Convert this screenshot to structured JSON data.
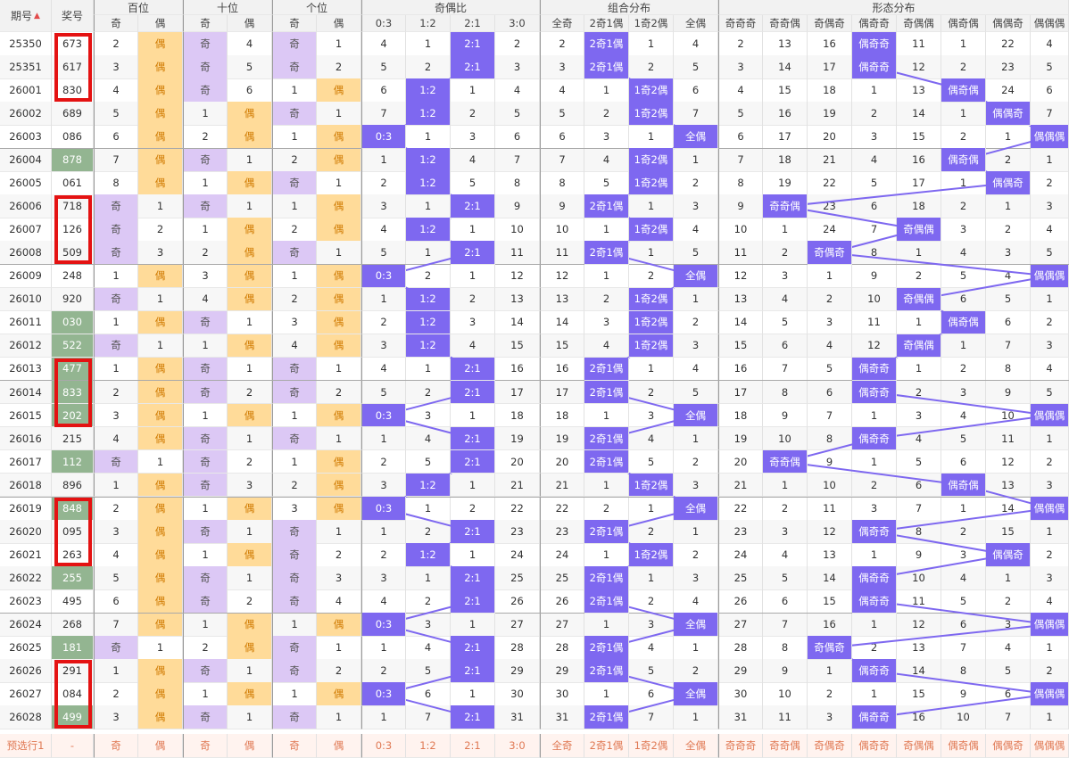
{
  "header": {
    "issue": "期号",
    "draw": "奖号",
    "sort_arrow": "▲",
    "groups": {
      "hundreds": "百位",
      "tens": "十位",
      "units": "个位",
      "ratio": "奇偶比",
      "combo": "组合分布",
      "shape": "形态分布"
    },
    "sub": {
      "odd": "奇",
      "even": "偶",
      "ratio": [
        "0:3",
        "1:2",
        "2:1",
        "3:0"
      ],
      "combo": [
        "全奇",
        "2奇1偶",
        "1奇2偶",
        "全偶"
      ],
      "shape": [
        "奇奇奇",
        "奇奇偶",
        "奇偶奇",
        "偶奇奇",
        "奇偶偶",
        "偶奇偶",
        "偶偶奇",
        "偶偶偶"
      ]
    }
  },
  "colors": {
    "odd_bg": "#dcc8f5",
    "even_bg": "#ffdb99",
    "even_text": "#d07a00",
    "hot_bg": "#7e68f0",
    "green_bg": "#93b591",
    "frame": "#e41212",
    "line": "#7e68f0"
  },
  "rows": [
    {
      "issue": "25350",
      "num": "673",
      "g": 0,
      "h": [
        2,
        "偶"
      ],
      "t": [
        "奇",
        4
      ],
      "u": [
        "奇",
        1
      ],
      "r": [
        4,
        1,
        "2:1",
        2
      ],
      "c": [
        2,
        "2奇1偶",
        1,
        4
      ],
      "s": [
        2,
        13,
        16,
        "偶奇奇",
        11,
        1,
        22,
        4
      ]
    },
    {
      "issue": "25351",
      "num": "617",
      "g": 0,
      "h": [
        3,
        "偶"
      ],
      "t": [
        "奇",
        5
      ],
      "u": [
        "奇",
        2
      ],
      "r": [
        5,
        2,
        "2:1",
        3
      ],
      "c": [
        3,
        "2奇1偶",
        2,
        5
      ],
      "s": [
        3,
        14,
        17,
        "偶奇奇",
        12,
        2,
        23,
        5
      ]
    },
    {
      "issue": "26001",
      "num": "830",
      "g": 0,
      "h": [
        4,
        "偶"
      ],
      "t": [
        "奇",
        6
      ],
      "u": [
        1,
        "偶"
      ],
      "r": [
        6,
        "1:2",
        1,
        4
      ],
      "c": [
        4,
        1,
        "1奇2偶",
        6
      ],
      "s": [
        4,
        15,
        18,
        1,
        13,
        "偶奇偶",
        24,
        6
      ]
    },
    {
      "issue": "26002",
      "num": "689",
      "g": 0,
      "h": [
        5,
        "偶"
      ],
      "t": [
        1,
        "偶"
      ],
      "u": [
        "奇",
        1
      ],
      "r": [
        7,
        "1:2",
        2,
        5
      ],
      "c": [
        5,
        2,
        "1奇2偶",
        7
      ],
      "s": [
        5,
        16,
        19,
        2,
        14,
        1,
        "偶偶奇",
        7
      ]
    },
    {
      "issue": "26003",
      "num": "086",
      "g": 0,
      "h": [
        6,
        "偶"
      ],
      "t": [
        2,
        "偶"
      ],
      "u": [
        1,
        "偶"
      ],
      "r": [
        "0:3",
        1,
        3,
        6
      ],
      "c": [
        6,
        3,
        1,
        "全偶"
      ],
      "s": [
        6,
        17,
        20,
        3,
        15,
        2,
        1,
        "偶偶偶"
      ]
    },
    {
      "issue": "26004",
      "num": "878",
      "g": 1,
      "h": [
        7,
        "偶"
      ],
      "t": [
        "奇",
        1
      ],
      "u": [
        2,
        "偶"
      ],
      "r": [
        1,
        "1:2",
        4,
        7
      ],
      "c": [
        7,
        4,
        "1奇2偶",
        1
      ],
      "s": [
        7,
        18,
        21,
        4,
        16,
        "偶奇偶",
        2,
        1
      ]
    },
    {
      "issue": "26005",
      "num": "061",
      "g": 0,
      "h": [
        8,
        "偶"
      ],
      "t": [
        1,
        "偶"
      ],
      "u": [
        "奇",
        1
      ],
      "r": [
        2,
        "1:2",
        5,
        8
      ],
      "c": [
        8,
        5,
        "1奇2偶",
        2
      ],
      "s": [
        8,
        19,
        22,
        5,
        17,
        1,
        "偶偶奇",
        2
      ]
    },
    {
      "issue": "26006",
      "num": "718",
      "g": 0,
      "h": [
        "奇",
        1
      ],
      "t": [
        "奇",
        1
      ],
      "u": [
        1,
        "偶"
      ],
      "r": [
        3,
        1,
        "2:1",
        9
      ],
      "c": [
        9,
        "2奇1偶",
        1,
        3
      ],
      "s": [
        9,
        "奇奇偶",
        23,
        6,
        18,
        2,
        1,
        3
      ]
    },
    {
      "issue": "26007",
      "num": "126",
      "g": 0,
      "h": [
        "奇",
        2
      ],
      "t": [
        1,
        "偶"
      ],
      "u": [
        2,
        "偶"
      ],
      "r": [
        4,
        "1:2",
        1,
        10
      ],
      "c": [
        10,
        1,
        "1奇2偶",
        4
      ],
      "s": [
        10,
        1,
        24,
        7,
        "奇偶偶",
        3,
        2,
        4
      ]
    },
    {
      "issue": "26008",
      "num": "509",
      "g": 0,
      "h": [
        "奇",
        3
      ],
      "t": [
        2,
        "偶"
      ],
      "u": [
        "奇",
        1
      ],
      "r": [
        5,
        1,
        "2:1",
        11
      ],
      "c": [
        11,
        "2奇1偶",
        1,
        5
      ],
      "s": [
        11,
        2,
        "奇偶奇",
        8,
        1,
        4,
        3,
        5
      ]
    },
    {
      "issue": "26009",
      "num": "248",
      "g": 0,
      "h": [
        1,
        "偶"
      ],
      "t": [
        3,
        "偶"
      ],
      "u": [
        1,
        "偶"
      ],
      "r": [
        "0:3",
        2,
        1,
        12
      ],
      "c": [
        12,
        1,
        2,
        "全偶"
      ],
      "s": [
        12,
        3,
        1,
        9,
        2,
        5,
        4,
        "偶偶偶"
      ]
    },
    {
      "issue": "26010",
      "num": "920",
      "g": 0,
      "h": [
        "奇",
        1
      ],
      "t": [
        4,
        "偶"
      ],
      "u": [
        2,
        "偶"
      ],
      "r": [
        1,
        "1:2",
        2,
        13
      ],
      "c": [
        13,
        2,
        "1奇2偶",
        1
      ],
      "s": [
        13,
        4,
        2,
        10,
        "奇偶偶",
        6,
        5,
        1
      ]
    },
    {
      "issue": "26011",
      "num": "030",
      "g": 1,
      "h": [
        1,
        "偶"
      ],
      "t": [
        "奇",
        1
      ],
      "u": [
        3,
        "偶"
      ],
      "r": [
        2,
        "1:2",
        3,
        14
      ],
      "c": [
        14,
        3,
        "1奇2偶",
        2
      ],
      "s": [
        14,
        5,
        3,
        11,
        1,
        "偶奇偶",
        6,
        2
      ]
    },
    {
      "issue": "26012",
      "num": "522",
      "g": 1,
      "h": [
        "奇",
        1
      ],
      "t": [
        1,
        "偶"
      ],
      "u": [
        4,
        "偶"
      ],
      "r": [
        3,
        "1:2",
        4,
        15
      ],
      "c": [
        15,
        4,
        "1奇2偶",
        3
      ],
      "s": [
        15,
        6,
        4,
        12,
        "奇偶偶",
        1,
        7,
        3
      ]
    },
    {
      "issue": "26013",
      "num": "477",
      "g": 1,
      "h": [
        1,
        "偶"
      ],
      "t": [
        "奇",
        1
      ],
      "u": [
        "奇",
        1
      ],
      "r": [
        4,
        1,
        "2:1",
        16
      ],
      "c": [
        16,
        "2奇1偶",
        1,
        4
      ],
      "s": [
        16,
        7,
        5,
        "偶奇奇",
        1,
        2,
        8,
        4
      ]
    },
    {
      "issue": "26014",
      "num": "833",
      "g": 1,
      "h": [
        2,
        "偶"
      ],
      "t": [
        "奇",
        2
      ],
      "u": [
        "奇",
        2
      ],
      "r": [
        5,
        2,
        "2:1",
        17
      ],
      "c": [
        17,
        "2奇1偶",
        2,
        5
      ],
      "s": [
        17,
        8,
        6,
        "偶奇奇",
        2,
        3,
        9,
        5
      ]
    },
    {
      "issue": "26015",
      "num": "202",
      "g": 1,
      "h": [
        3,
        "偶"
      ],
      "t": [
        1,
        "偶"
      ],
      "u": [
        1,
        "偶"
      ],
      "r": [
        "0:3",
        3,
        1,
        18
      ],
      "c": [
        18,
        1,
        3,
        "全偶"
      ],
      "s": [
        18,
        9,
        7,
        1,
        3,
        4,
        10,
        "偶偶偶"
      ]
    },
    {
      "issue": "26016",
      "num": "215",
      "g": 0,
      "h": [
        4,
        "偶"
      ],
      "t": [
        "奇",
        1
      ],
      "u": [
        "奇",
        1
      ],
      "r": [
        1,
        4,
        "2:1",
        19
      ],
      "c": [
        19,
        "2奇1偶",
        4,
        1
      ],
      "s": [
        19,
        10,
        8,
        "偶奇奇",
        4,
        5,
        11,
        1
      ]
    },
    {
      "issue": "26017",
      "num": "112",
      "g": 1,
      "h": [
        "奇",
        1
      ],
      "t": [
        "奇",
        2
      ],
      "u": [
        1,
        "偶"
      ],
      "r": [
        2,
        5,
        "2:1",
        20
      ],
      "c": [
        20,
        "2奇1偶",
        5,
        2
      ],
      "s": [
        20,
        "奇奇偶",
        9,
        1,
        5,
        6,
        12,
        2
      ]
    },
    {
      "issue": "26018",
      "num": "896",
      "g": 0,
      "h": [
        1,
        "偶"
      ],
      "t": [
        "奇",
        3
      ],
      "u": [
        2,
        "偶"
      ],
      "r": [
        3,
        "1:2",
        1,
        21
      ],
      "c": [
        21,
        1,
        "1奇2偶",
        3
      ],
      "s": [
        21,
        1,
        10,
        2,
        6,
        "偶奇偶",
        13,
        3
      ]
    },
    {
      "issue": "26019",
      "num": "848",
      "g": 1,
      "h": [
        2,
        "偶"
      ],
      "t": [
        1,
        "偶"
      ],
      "u": [
        3,
        "偶"
      ],
      "r": [
        "0:3",
        1,
        2,
        22
      ],
      "c": [
        22,
        2,
        1,
        "全偶"
      ],
      "s": [
        22,
        2,
        11,
        3,
        7,
        1,
        14,
        "偶偶偶"
      ]
    },
    {
      "issue": "26020",
      "num": "095",
      "g": 0,
      "h": [
        3,
        "偶"
      ],
      "t": [
        "奇",
        1
      ],
      "u": [
        "奇",
        1
      ],
      "r": [
        1,
        2,
        "2:1",
        23
      ],
      "c": [
        23,
        "2奇1偶",
        2,
        1
      ],
      "s": [
        23,
        3,
        12,
        "偶奇奇",
        8,
        2,
        15,
        1
      ]
    },
    {
      "issue": "26021",
      "num": "263",
      "g": 0,
      "h": [
        4,
        "偶"
      ],
      "t": [
        1,
        "偶"
      ],
      "u": [
        "奇",
        2
      ],
      "r": [
        2,
        "1:2",
        1,
        24
      ],
      "c": [
        24,
        1,
        "1奇2偶",
        2
      ],
      "s": [
        24,
        4,
        13,
        1,
        9,
        3,
        "偶偶奇",
        2
      ]
    },
    {
      "issue": "26022",
      "num": "255",
      "g": 1,
      "h": [
        5,
        "偶"
      ],
      "t": [
        "奇",
        1
      ],
      "u": [
        "奇",
        3
      ],
      "r": [
        3,
        1,
        "2:1",
        25
      ],
      "c": [
        25,
        "2奇1偶",
        1,
        3
      ],
      "s": [
        25,
        5,
        14,
        "偶奇奇",
        10,
        4,
        1,
        3
      ]
    },
    {
      "issue": "26023",
      "num": "495",
      "g": 0,
      "h": [
        6,
        "偶"
      ],
      "t": [
        "奇",
        2
      ],
      "u": [
        "奇",
        4
      ],
      "r": [
        4,
        2,
        "2:1",
        26
      ],
      "c": [
        26,
        "2奇1偶",
        2,
        4
      ],
      "s": [
        26,
        6,
        15,
        "偶奇奇",
        11,
        5,
        2,
        4
      ]
    },
    {
      "issue": "26024",
      "num": "268",
      "g": 0,
      "h": [
        7,
        "偶"
      ],
      "t": [
        1,
        "偶"
      ],
      "u": [
        1,
        "偶"
      ],
      "r": [
        "0:3",
        3,
        1,
        27
      ],
      "c": [
        27,
        1,
        3,
        "全偶"
      ],
      "s": [
        27,
        7,
        16,
        1,
        12,
        6,
        3,
        "偶偶偶"
      ]
    },
    {
      "issue": "26025",
      "num": "181",
      "g": 1,
      "h": [
        "奇",
        1
      ],
      "t": [
        2,
        "偶"
      ],
      "u": [
        "奇",
        1
      ],
      "r": [
        1,
        4,
        "2:1",
        28
      ],
      "c": [
        28,
        "2奇1偶",
        4,
        1
      ],
      "s": [
        28,
        8,
        "奇偶奇",
        2,
        13,
        7,
        4,
        1
      ]
    },
    {
      "issue": "26026",
      "num": "291",
      "g": 0,
      "h": [
        1,
        "偶"
      ],
      "t": [
        "奇",
        1
      ],
      "u": [
        "奇",
        2
      ],
      "r": [
        2,
        5,
        "2:1",
        29
      ],
      "c": [
        29,
        "2奇1偶",
        5,
        2
      ],
      "s": [
        29,
        9,
        1,
        "偶奇奇",
        14,
        8,
        5,
        2
      ]
    },
    {
      "issue": "26027",
      "num": "084",
      "g": 0,
      "h": [
        2,
        "偶"
      ],
      "t": [
        1,
        "偶"
      ],
      "u": [
        1,
        "偶"
      ],
      "r": [
        "0:3",
        6,
        1,
        30
      ],
      "c": [
        30,
        1,
        6,
        "全偶"
      ],
      "s": [
        30,
        10,
        2,
        1,
        15,
        9,
        6,
        "偶偶偶"
      ]
    },
    {
      "issue": "26028",
      "num": "499",
      "g": 1,
      "h": [
        3,
        "偶"
      ],
      "t": [
        "奇",
        1
      ],
      "u": [
        "奇",
        1
      ],
      "r": [
        1,
        7,
        "2:1",
        31
      ],
      "c": [
        31,
        "2奇1偶",
        7,
        1
      ],
      "s": [
        31,
        11,
        3,
        "偶奇奇",
        16,
        10,
        7,
        1
      ]
    }
  ],
  "footer": {
    "label": "预选行1",
    "draw": "-",
    "cols": [
      "奇",
      "偶",
      "奇",
      "偶",
      "奇",
      "偶",
      "0:3",
      "1:2",
      "2:1",
      "3:0",
      "全奇",
      "2奇1偶",
      "1奇2偶",
      "全偶",
      "奇奇奇",
      "奇奇偶",
      "奇偶奇",
      "偶奇奇",
      "奇偶偶",
      "偶奇偶",
      "偶偶奇",
      "偶偶偶"
    ]
  },
  "highlight_frames": [
    {
      "from": "25350",
      "to": "26001"
    },
    {
      "from": "26006",
      "to": "26008"
    },
    {
      "from": "26013",
      "to": "26015"
    },
    {
      "from": "26019",
      "to": "26021"
    },
    {
      "from": "26026",
      "to": "26028"
    }
  ]
}
